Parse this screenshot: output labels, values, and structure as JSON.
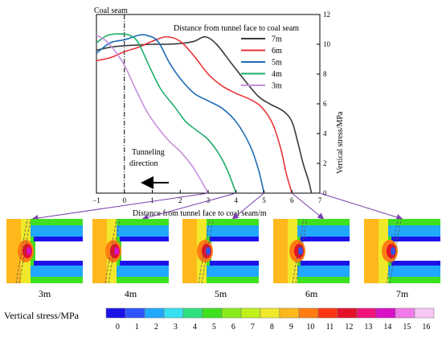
{
  "chart_data": {
    "type": "line",
    "coal_seam_label": "Coal seam",
    "legend_title": "Distance from tunnel face to coal seam",
    "xlabel": "Distance from tunnel face to coal seam/m",
    "ylabel": "Vertical stress/MPa",
    "xlim": [
      -1,
      7
    ],
    "ylim": [
      0,
      12
    ],
    "x_ticks": [
      "-1",
      "0",
      "1",
      "2",
      "3",
      "4",
      "5",
      "6",
      "7"
    ],
    "y_ticks": [
      "0",
      "2",
      "4",
      "6",
      "8",
      "10",
      "12"
    ],
    "annotation": {
      "line1": "Tunneling",
      "line2": "direction"
    },
    "series": [
      {
        "name": "7m",
        "color": "#3a3a3a",
        "points": [
          [
            -1,
            9.6
          ],
          [
            -0.5,
            9.8
          ],
          [
            0,
            9.9
          ],
          [
            0.5,
            9.95
          ],
          [
            1,
            10.0
          ],
          [
            1.5,
            10.0
          ],
          [
            2,
            10.05
          ],
          [
            2.5,
            10.2
          ],
          [
            2.9,
            10.5
          ],
          [
            3.3,
            10.0
          ],
          [
            3.8,
            8.8
          ],
          [
            4.3,
            7.6
          ],
          [
            4.8,
            6.5
          ],
          [
            5.2,
            6.0
          ],
          [
            5.7,
            5.5
          ],
          [
            6.0,
            4.8
          ],
          [
            6.2,
            3.5
          ],
          [
            6.4,
            2.0
          ],
          [
            6.6,
            0.8
          ],
          [
            6.7,
            0.0
          ]
        ]
      },
      {
        "name": "6m",
        "color": "#e8343a",
        "points": [
          [
            -1,
            8.9
          ],
          [
            -0.5,
            9.1
          ],
          [
            0,
            9.5
          ],
          [
            0.5,
            9.8
          ],
          [
            1,
            10.2
          ],
          [
            1.5,
            10.5
          ],
          [
            2,
            10.2
          ],
          [
            2.5,
            9.2
          ],
          [
            3,
            8.0
          ],
          [
            3.5,
            7.2
          ],
          [
            4,
            6.7
          ],
          [
            4.5,
            6.3
          ],
          [
            4.9,
            5.8
          ],
          [
            5.3,
            4.7
          ],
          [
            5.6,
            3.0
          ],
          [
            5.8,
            1.3
          ],
          [
            6.0,
            0.0
          ]
        ]
      },
      {
        "name": "5m",
        "color": "#1f6cb5",
        "points": [
          [
            -1,
            9.4
          ],
          [
            -0.5,
            10.1
          ],
          [
            0,
            10.3
          ],
          [
            0.5,
            10.6
          ],
          [
            0.8,
            10.6
          ],
          [
            1.2,
            10.2
          ],
          [
            1.6,
            8.8
          ],
          [
            2,
            7.7
          ],
          [
            2.5,
            6.7
          ],
          [
            3,
            6.2
          ],
          [
            3.5,
            5.7
          ],
          [
            4,
            4.8
          ],
          [
            4.5,
            3.2
          ],
          [
            4.8,
            1.6
          ],
          [
            5.0,
            0.0
          ]
        ]
      },
      {
        "name": "4m",
        "color": "#1fae6a",
        "points": [
          [
            -1,
            10.1
          ],
          [
            -0.6,
            10.6
          ],
          [
            -0.2,
            10.7
          ],
          [
            0.2,
            10.6
          ],
          [
            0.5,
            10.1
          ],
          [
            0.9,
            8.5
          ],
          [
            1.3,
            7.0
          ],
          [
            1.8,
            5.8
          ],
          [
            2.2,
            4.8
          ],
          [
            2.6,
            4.2
          ],
          [
            3,
            3.6
          ],
          [
            3.4,
            2.6
          ],
          [
            3.7,
            1.5
          ],
          [
            4.0,
            0.0
          ]
        ]
      },
      {
        "name": "3m",
        "color": "#c58fdc",
        "points": [
          [
            -1,
            10.6
          ],
          [
            -0.7,
            10.3
          ],
          [
            -0.4,
            9.7
          ],
          [
            0,
            8.6
          ],
          [
            0.4,
            7.0
          ],
          [
            0.8,
            5.5
          ],
          [
            1.2,
            4.4
          ],
          [
            1.6,
            3.5
          ],
          [
            2,
            2.8
          ],
          [
            2.4,
            1.9
          ],
          [
            2.7,
            1.0
          ],
          [
            3.0,
            0.0
          ]
        ]
      }
    ],
    "panels": [
      "3m",
      "4m",
      "5m",
      "6m",
      "7m"
    ],
    "colorbar": {
      "title": "Vertical stress/MPa",
      "labels": [
        "0",
        "1",
        "2",
        "3",
        "4",
        "5",
        "6",
        "7",
        "8",
        "9",
        "10",
        "11",
        "12",
        "13",
        "14",
        "15",
        "16"
      ],
      "colors": [
        "#1c12e8",
        "#2e55ff",
        "#21a8ff",
        "#37e0f0",
        "#30e080",
        "#3fe020",
        "#8aeb1c",
        "#bff01a",
        "#f0e82a",
        "#ffb81c",
        "#ff7d12",
        "#ff3413",
        "#e5102a",
        "#f0147a",
        "#d810c6",
        "#f07ae8",
        "#f8c6f2"
      ]
    }
  }
}
